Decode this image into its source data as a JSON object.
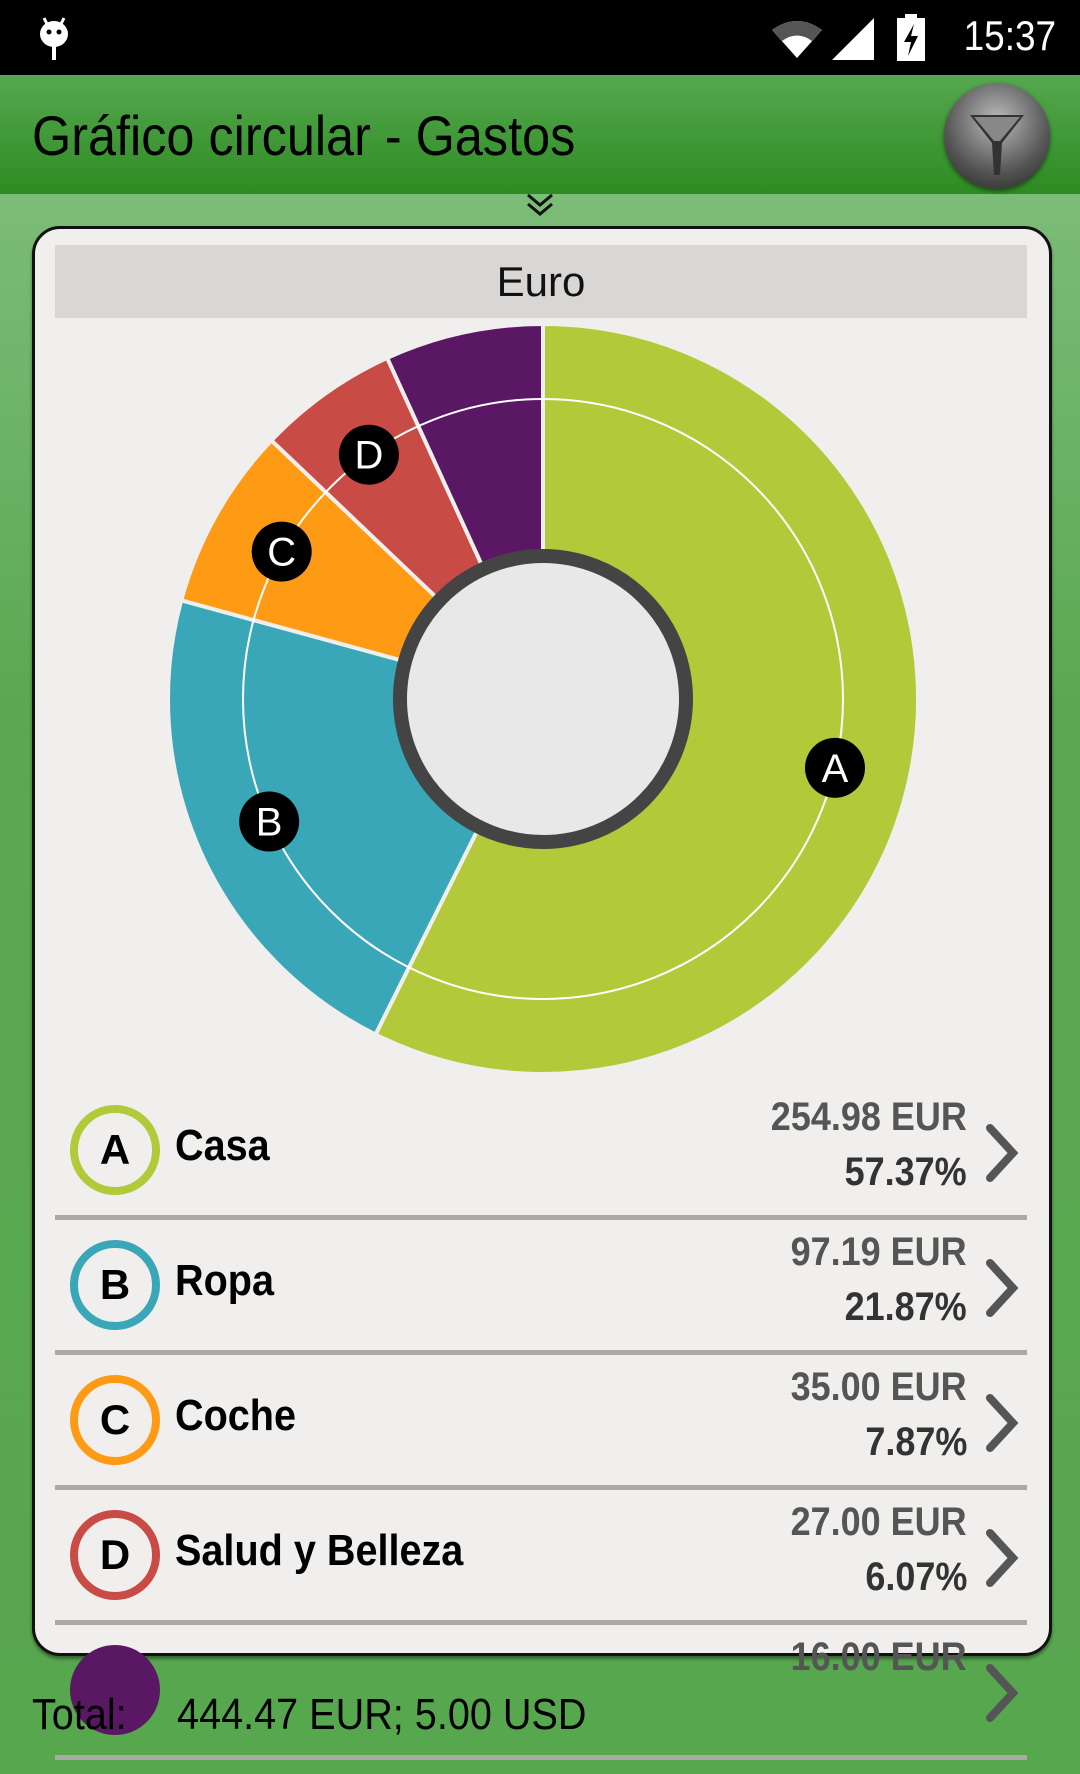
{
  "status_bar": {
    "time": "15:37",
    "icons": [
      "android-debug-icon",
      "wifi-icon",
      "signal-icon",
      "battery-charging-icon"
    ]
  },
  "app_bar": {
    "title": "Gráfico circular - Gastos",
    "filter_icon": "funnel-icon"
  },
  "expand_icon": "double-chevron-down-icon",
  "currency_header": "Euro",
  "chart_data": {
    "type": "pie",
    "style": "donut",
    "start": "top, clockwise",
    "slices": [
      {
        "label": "A",
        "value": 57.37,
        "color": "#b2c93a"
      },
      {
        "label": "B",
        "value": 21.87,
        "color": "#3aa7b9"
      },
      {
        "label": "C",
        "value": 7.87,
        "color": "#ff9a14"
      },
      {
        "label": "D",
        "value": 6.07,
        "color": "#c94b45"
      },
      {
        "label": "",
        "value": 6.82,
        "color": "#5a1763"
      }
    ]
  },
  "items": [
    {
      "letter": "A",
      "name": "Casa",
      "amount": "254.98 EUR",
      "percent": "57.37%",
      "color": "#b2c93a"
    },
    {
      "letter": "B",
      "name": "Ropa",
      "amount": "97.19 EUR",
      "percent": "21.87%",
      "color": "#3aa7b9"
    },
    {
      "letter": "C",
      "name": "Coche",
      "amount": "35.00 EUR",
      "percent": "7.87%",
      "color": "#ff9a14"
    },
    {
      "letter": "D",
      "name": "Salud y Belleza",
      "amount": "27.00 EUR",
      "percent": "6.07%",
      "color": "#c94b45"
    },
    {
      "letter": "",
      "name": "",
      "amount": "16.00 EUR",
      "percent": "",
      "color": "#5a1763"
    }
  ],
  "footer": {
    "label": "Total:",
    "value": "444.47 EUR; 5.00 USD"
  }
}
